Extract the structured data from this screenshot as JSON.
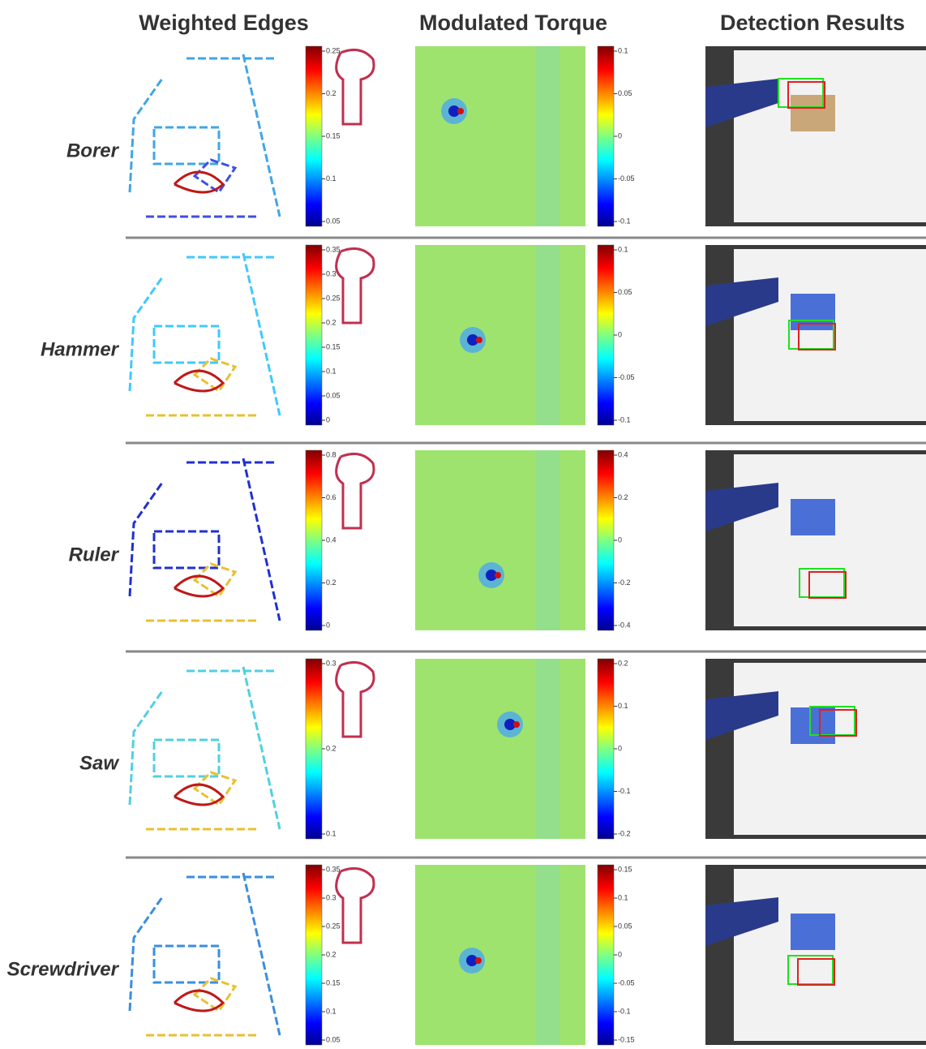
{
  "header": [
    "Weighted Edges",
    "Modulated Torque",
    "Detection Results"
  ],
  "rows": [
    {
      "label": "Borer",
      "edge_ticks": [
        "0.25",
        "0.2",
        "0.15",
        "0.1",
        "0.05"
      ],
      "torque_ticks": [
        "0.1",
        "0.05",
        "0",
        "-0.05",
        "-0.1"
      ]
    },
    {
      "label": "Hammer",
      "edge_ticks": [
        "0.35",
        "0.3",
        "0.25",
        "0.2",
        "0.15",
        "0.1",
        "0.05",
        "0"
      ],
      "torque_ticks": [
        "0.1",
        "0.05",
        "0",
        "-0.05",
        "-0.1"
      ]
    },
    {
      "label": "Ruler",
      "edge_ticks": [
        "0.8",
        "0.6",
        "0.4",
        "0.2",
        "0"
      ],
      "torque_ticks": [
        "0.4",
        "0.2",
        "0",
        "-0.2",
        "-0.4"
      ]
    },
    {
      "label": "Saw",
      "edge_ticks": [
        "0.3",
        "0.2",
        "0.1"
      ],
      "torque_ticks": [
        "0.2",
        "0.1",
        "0",
        "-0.1",
        "-0.2"
      ]
    },
    {
      "label": "Screwdriver",
      "edge_ticks": [
        "0.35",
        "0.3",
        "0.25",
        "0.2",
        "0.15",
        "0.1",
        "0.05"
      ],
      "torque_ticks": [
        "0.15",
        "0.1",
        "0.05",
        "0",
        "-0.05",
        "-0.1",
        "-0.15"
      ]
    }
  ]
}
